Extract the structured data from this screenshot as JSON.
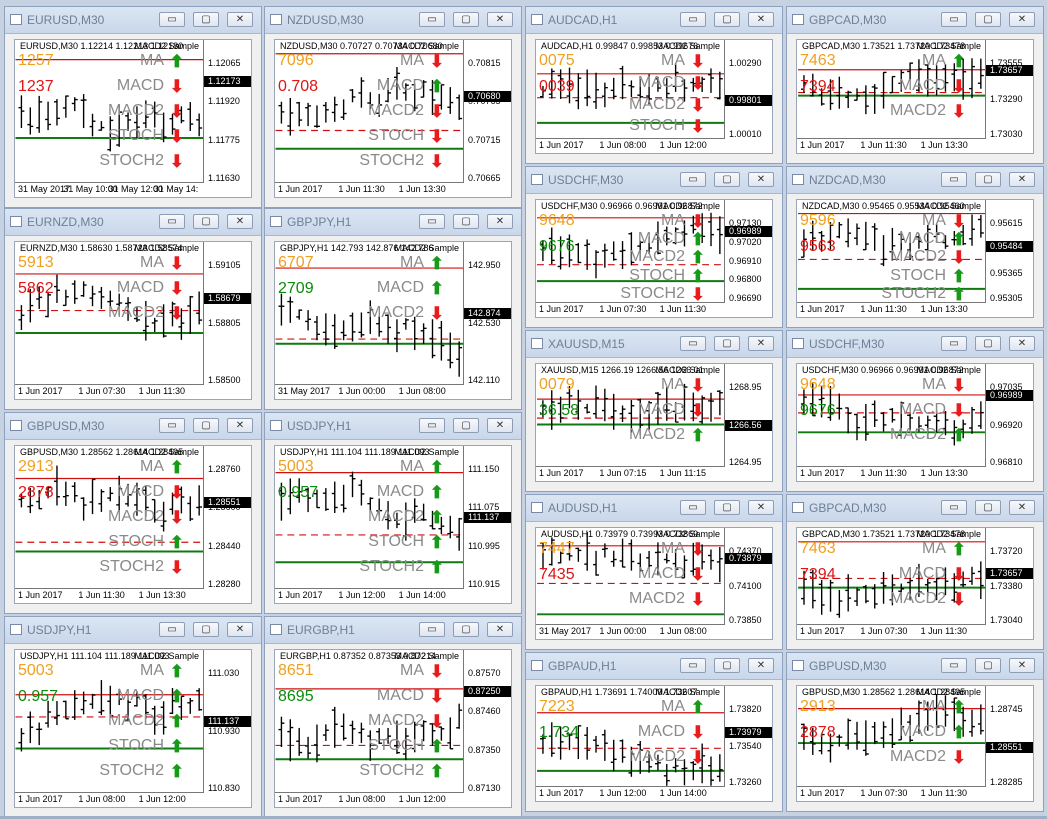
{
  "ui": {
    "minimize_glyph": "▭",
    "maximize_glyph": "▢",
    "close_glyph": "✕"
  },
  "windows": [
    {
      "title": "EURUSD,M30",
      "inner": "EURUSD,M30  1.12214 1.12213 1.12180",
      "control": "MACD2 Sample",
      "big_y": "1257",
      "big_r": "1237",
      "indicators": [
        "MA",
        "MACD",
        "MACD2",
        "STOCH",
        "STOCH2"
      ],
      "signals": [
        "up",
        "dn",
        "dn",
        "dn",
        "dn"
      ],
      "yticks": [
        "1.12065",
        "1.11920",
        "1.11775",
        "1.11630"
      ],
      "current": "1.12173",
      "xticks": [
        "31 May 2017",
        "31 May 10:00",
        "31 May 12:00",
        "31 May 14:"
      ]
    },
    {
      "title": "NZDUSD,M30",
      "inner": "NZDUSD,M30  0.70727 0.70734 0.70680",
      "control": "MACD2 Sample",
      "big_y": "7096",
      "big_r": "0.708",
      "indicators": [
        "MA",
        "MACD",
        "MACD2",
        "STOCH",
        "STOCH2"
      ],
      "signals": [
        "dn",
        "up",
        "dn",
        "dn",
        "dn"
      ],
      "yticks": [
        "0.70815",
        "0.70765",
        "0.70715",
        "0.70665"
      ],
      "current": "0.70680",
      "xticks": [
        "1 Jun 2017",
        "1 Jun 11:30",
        "1 Jun 13:30"
      ]
    },
    {
      "title": "AUDCAD,H1",
      "inner": "AUDCAD,H1  0.99847 0.99853 0.99676",
      "control": "MACD2 Sample",
      "big_y": "0075",
      "big_r": "0039",
      "indicators": [
        "MA",
        "MACD",
        "MACD2",
        "STOCH"
      ],
      "signals": [
        "dn",
        "dn",
        "dn",
        "dn"
      ],
      "yticks": [
        "1.00290",
        "1.00010"
      ],
      "current": "0.99801",
      "xticks": [
        "1 Jun 2017",
        "1 Jun 08:00",
        "1 Jun 12:00"
      ]
    },
    {
      "title": "GBPCAD,M30",
      "inner": "GBPCAD,M30  1.73521 1.73720 1.73478",
      "control": "MACD2 Sample",
      "big_y": "7463",
      "big_r": "7394",
      "indicators": [
        "MA",
        "MACD",
        "MACD2"
      ],
      "signals": [
        "up",
        "dn",
        "dn"
      ],
      "yticks": [
        "1.73555",
        "1.73290",
        "1.73030"
      ],
      "current": "1.73657",
      "xticks": [
        "1 Jun 2017",
        "1 Jun 11:30",
        "1 Jun 13:30"
      ]
    },
    {
      "title": "EURNZD,M30",
      "inner": "EURNZD,M30  1.58630 1.58723 1.58574",
      "control": "MACD2 Sample",
      "big_y": "5913",
      "big_r": "5862",
      "indicators": [
        "MA",
        "MACD",
        "MACD2"
      ],
      "signals": [
        "dn",
        "dn",
        "dn"
      ],
      "yticks": [
        "1.59105",
        "1.58805",
        "1.58500"
      ],
      "current": "1.58679",
      "xticks": [
        "1 Jun 2017",
        "1 Jun 07:30",
        "1 Jun 11:30"
      ]
    },
    {
      "title": "GBPJPY,H1",
      "inner": "GBPJPY,H1  142.793 142.876 142.786",
      "control": "MACD2 Sample",
      "big_y": "6707",
      "big_r": "2709",
      "indicators": [
        "MA",
        "MACD",
        "MACD2"
      ],
      "signals": [
        "up",
        "up",
        "dn"
      ],
      "yticks": [
        "142.950",
        "142.530",
        "142.110"
      ],
      "current": "142.874",
      "xticks": [
        "31 May 2017",
        "1 Jun 00:00",
        "1 Jun 08:00"
      ]
    },
    {
      "title": "USDCHF,M30",
      "inner": "USDCHF,M30  0.96966 0.96991 0.96872",
      "control": "MACD2 Sample",
      "big_y": "9648",
      "big_r": "9676",
      "indicators": [
        "MA",
        "MACD",
        "MACD2",
        "STOCH",
        "STOCH2"
      ],
      "signals": [
        "dn",
        "up",
        "up",
        "up",
        "dn"
      ],
      "yticks": [
        "0.97130",
        "0.97020",
        "0.96910",
        "0.96800",
        "0.96690"
      ],
      "current": "0.96989",
      "xticks": [
        "1 Jun 2017",
        "1 Jun 07:30",
        "1 Jun 11:30"
      ]
    },
    {
      "title": "NZDCAD,M30",
      "inner": "NZDCAD,M30  0.95465 0.95534 0.95460",
      "control": "MACD2 Sample",
      "big_y": "9596",
      "big_r": "9563",
      "indicators": [
        "MA",
        "MACD",
        "MACD2",
        "STOCH",
        "STOCH2"
      ],
      "signals": [
        "dn",
        "up",
        "dn",
        "up",
        "up"
      ],
      "yticks": [
        "0.95615",
        "0.95430",
        "0.95365",
        "0.95305"
      ],
      "current": "0.95484",
      "xticks": [
        "1 Jun 2017",
        "1 Jun 11:30",
        "1 Jun 13:30"
      ]
    },
    {
      "title": "XAUUSD,M15",
      "inner": "XAUUSD,M15  1266.19 1266.56 1266.01",
      "control": "MACD2 Sample",
      "big_y": "0079",
      "big_r": "36.58",
      "indicators": [
        "MA",
        "MACD",
        "MACD2"
      ],
      "signals": [
        "dn",
        "dn",
        "up"
      ],
      "yticks": [
        "1268.95",
        "1266.56",
        "1264.95"
      ],
      "current": "1266.56",
      "xticks": [
        "1 Jun 2017",
        "1 Jun 07:15",
        "1 Jun 11:15"
      ]
    },
    {
      "title": "USDCHF,M30",
      "inner": "USDCHF,M30  0.96966 0.96991 0.96872",
      "control": "MACD2 Sample",
      "big_y": "9648",
      "big_r": "9676",
      "indicators": [
        "MA",
        "MACD",
        "MACD2"
      ],
      "signals": [
        "dn",
        "dn",
        "up"
      ],
      "yticks": [
        "0.97035",
        "0.96920",
        "0.96810"
      ],
      "current": "0.96989",
      "xticks": [
        "1 Jun 2017",
        "1 Jun 11:30",
        "1 Jun 13:30"
      ]
    },
    {
      "title": "GBPUSD,M30",
      "inner": "GBPUSD,M30  1.28562 1.28614 1.28495",
      "control": "MACD2 Sample",
      "big_y": "2913",
      "big_r": "2878",
      "indicators": [
        "MA",
        "MACD",
        "MACD2",
        "STOCH",
        "STOCH2"
      ],
      "signals": [
        "up",
        "dn",
        "dn",
        "up",
        "dn"
      ],
      "yticks": [
        "1.28760",
        "1.28600",
        "1.28440",
        "1.28280"
      ],
      "current": "1.28551",
      "xticks": [
        "1 Jun 2017",
        "1 Jun 11:30",
        "1 Jun 13:30"
      ]
    },
    {
      "title": "USDJPY,H1",
      "inner": "USDJPY,H1  111.104 111.189 111.093",
      "control": "MACD2 Sample",
      "big_y": "5003",
      "big_r": "0.957",
      "indicators": [
        "MA",
        "MACD",
        "MACD2",
        "STOCH",
        "STOCH2"
      ],
      "signals": [
        "up",
        "up",
        "up",
        "up",
        "up"
      ],
      "yticks": [
        "111.150",
        "111.075",
        "110.995",
        "110.915"
      ],
      "current": "111.137",
      "xticks": [
        "1 Jun 2017",
        "1 Jun 12:00",
        "1 Jun 14:00"
      ]
    },
    {
      "title": "AUDUSD,H1",
      "inner": "AUDUSD,H1  0.73979 0.73993 0.73869",
      "control": "MACD2 Sample",
      "big_y": "7447",
      "big_r": "7435",
      "indicators": [
        "MA",
        "MACD",
        "MACD2"
      ],
      "signals": [
        "dn",
        "dn",
        "dn"
      ],
      "yticks": [
        "0.74370",
        "0.74100",
        "0.73850"
      ],
      "current": "0.73879",
      "xticks": [
        "31 May 2017",
        "1 Jun 00:00",
        "1 Jun 08:00"
      ]
    },
    {
      "title": "GBPCAD,M30",
      "inner": "GBPCAD,M30  1.73521 1.73720 1.73478",
      "control": "MACD2 Sample",
      "big_y": "7463",
      "big_r": "7394",
      "indicators": [
        "MA",
        "MACD",
        "MACD2"
      ],
      "signals": [
        "up",
        "dn",
        "dn"
      ],
      "yticks": [
        "1.73720",
        "1.73380",
        "1.73040"
      ],
      "current": "1.73657",
      "xticks": [
        "1 Jun 2017",
        "1 Jun 07:30",
        "1 Jun 11:30"
      ]
    },
    {
      "title": "USDJPY,H1",
      "inner": "USDJPY,H1  111.104 111.189 111.093",
      "control": "MACD2 Sample",
      "big_y": "5003",
      "big_r": "0.957",
      "indicators": [
        "MA",
        "MACD",
        "MACD2",
        "STOCH",
        "STOCH2"
      ],
      "signals": [
        "up",
        "up",
        "up",
        "up",
        "up"
      ],
      "yticks": [
        "111.030",
        "110.930",
        "110.830"
      ],
      "current": "111.137",
      "xticks": [
        "1 Jun 2017",
        "1 Jun 08:00",
        "1 Jun 12:00"
      ]
    },
    {
      "title": "EURGBP,H1",
      "inner": "EURGBP,H1  0.87352 0.87353 0.87214",
      "control": "MACD2 Sample",
      "big_y": "8651",
      "big_r": "8695",
      "indicators": [
        "MA",
        "MACD",
        "MACD2",
        "STOCH",
        "STOCH2"
      ],
      "signals": [
        "dn",
        "dn",
        "dn",
        "up",
        "up"
      ],
      "yticks": [
        "0.87570",
        "0.87460",
        "0.87350",
        "0.87130"
      ],
      "current": "0.87250",
      "xticks": [
        "1 Jun 2017",
        "1 Jun 08:00",
        "1 Jun 12:00"
      ]
    },
    {
      "title": "GBPAUD,H1",
      "inner": "GBPAUD,H1  1.73691 1.74009 1.73607",
      "control": "MACD2 Sample",
      "big_y": "7223",
      "big_r": "1.734",
      "indicators": [
        "MA",
        "MACD",
        "MACD2"
      ],
      "signals": [
        "up",
        "dn",
        "dn"
      ],
      "yticks": [
        "1.73820",
        "1.73540",
        "1.73260"
      ],
      "current": "1.73979",
      "xticks": [
        "1 Jun 2017",
        "1 Jun 12:00",
        "1 Jun 14:00"
      ]
    },
    {
      "title": "GBPUSD,M30",
      "inner": "GBPUSD,M30  1.28562 1.28614 1.28495",
      "control": "MACD2 Sample",
      "big_y": "2913",
      "big_r": "2878",
      "indicators": [
        "MA",
        "MACD",
        "MACD2"
      ],
      "signals": [
        "up",
        "up",
        "dn"
      ],
      "yticks": [
        "1.28745",
        "1.28551",
        "1.28285"
      ],
      "current": "1.28551",
      "xticks": [
        "1 Jun 2017",
        "1 Jun 07:30",
        "1 Jun 11:30"
      ]
    }
  ]
}
